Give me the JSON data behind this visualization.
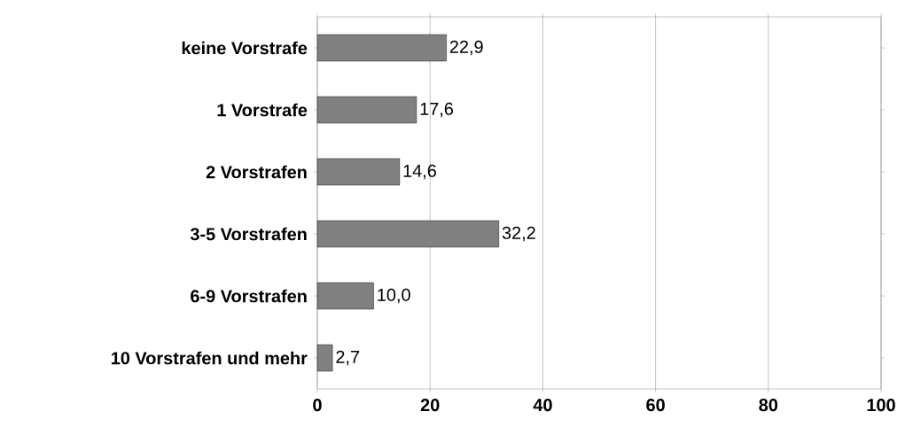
{
  "chart_data": {
    "type": "bar",
    "orientation": "horizontal",
    "categories": [
      "keine Vorstrafe",
      "1 Vorstrafe",
      "2 Vorstrafen",
      "3-5 Vorstrafen",
      "6-9 Vorstrafen",
      "10 Vorstrafen und mehr"
    ],
    "values": [
      22.9,
      17.6,
      14.6,
      32.2,
      10.0,
      2.7
    ],
    "value_labels": [
      "22,9",
      "17,6",
      "14,6",
      "32,2",
      "10,0",
      "2,7"
    ],
    "color": "#808080",
    "xlim": [
      0,
      100
    ],
    "xticks": [
      0,
      20,
      40,
      60,
      80,
      100
    ],
    "grid": "x"
  }
}
